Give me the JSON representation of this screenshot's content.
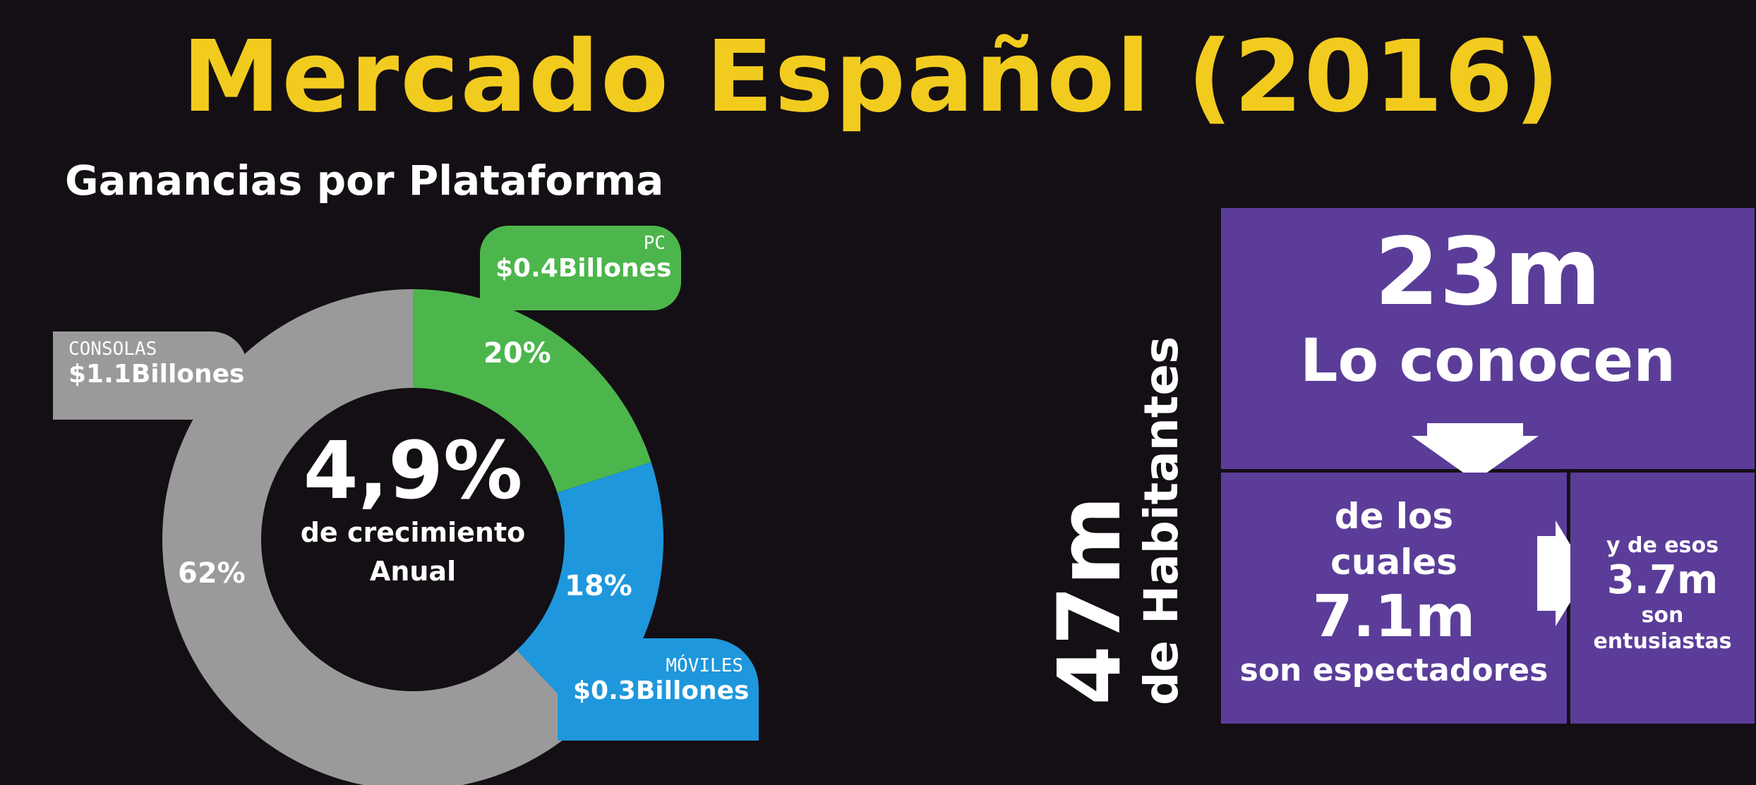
{
  "title": "Mercado Español (2016)",
  "colors": {
    "background": "#140f14",
    "title": "#f2cb1f",
    "consolas": "#9a9a9a",
    "pc": "#4cb64c",
    "moviles": "#1e97dc",
    "purple": "#5b3d99"
  },
  "chart_data": {
    "type": "pie",
    "title": "Ganancias por Plataforma",
    "center": {
      "value": "4,9%",
      "line1": "de crecimiento",
      "line2": "Anual"
    },
    "slices": [
      {
        "category": "PC",
        "revenue": "$0.4Billones",
        "percent": 20,
        "percent_label": "20%",
        "color": "#4cb64c"
      },
      {
        "category": "MÓVILES",
        "revenue": "$0.3Billones",
        "percent": 18,
        "percent_label": "18%",
        "color": "#1e97dc"
      },
      {
        "category": "CONSOLAS",
        "revenue": "$1.1Billones",
        "percent": 62,
        "percent_label": "62%",
        "color": "#9a9a9a"
      }
    ]
  },
  "population": {
    "total": "47m",
    "total_label": "de Habitantes",
    "know_value": "23m",
    "know_label": "Lo conocen",
    "spectators_pre": "de los cuales",
    "spectators_value": "7.1m",
    "spectators_label": "son espectadores",
    "enthusiasts_pre": "y de esos",
    "enthusiasts_value": "3.7m",
    "enthusiasts_mid": "son",
    "enthusiasts_label": "entusiastas"
  }
}
